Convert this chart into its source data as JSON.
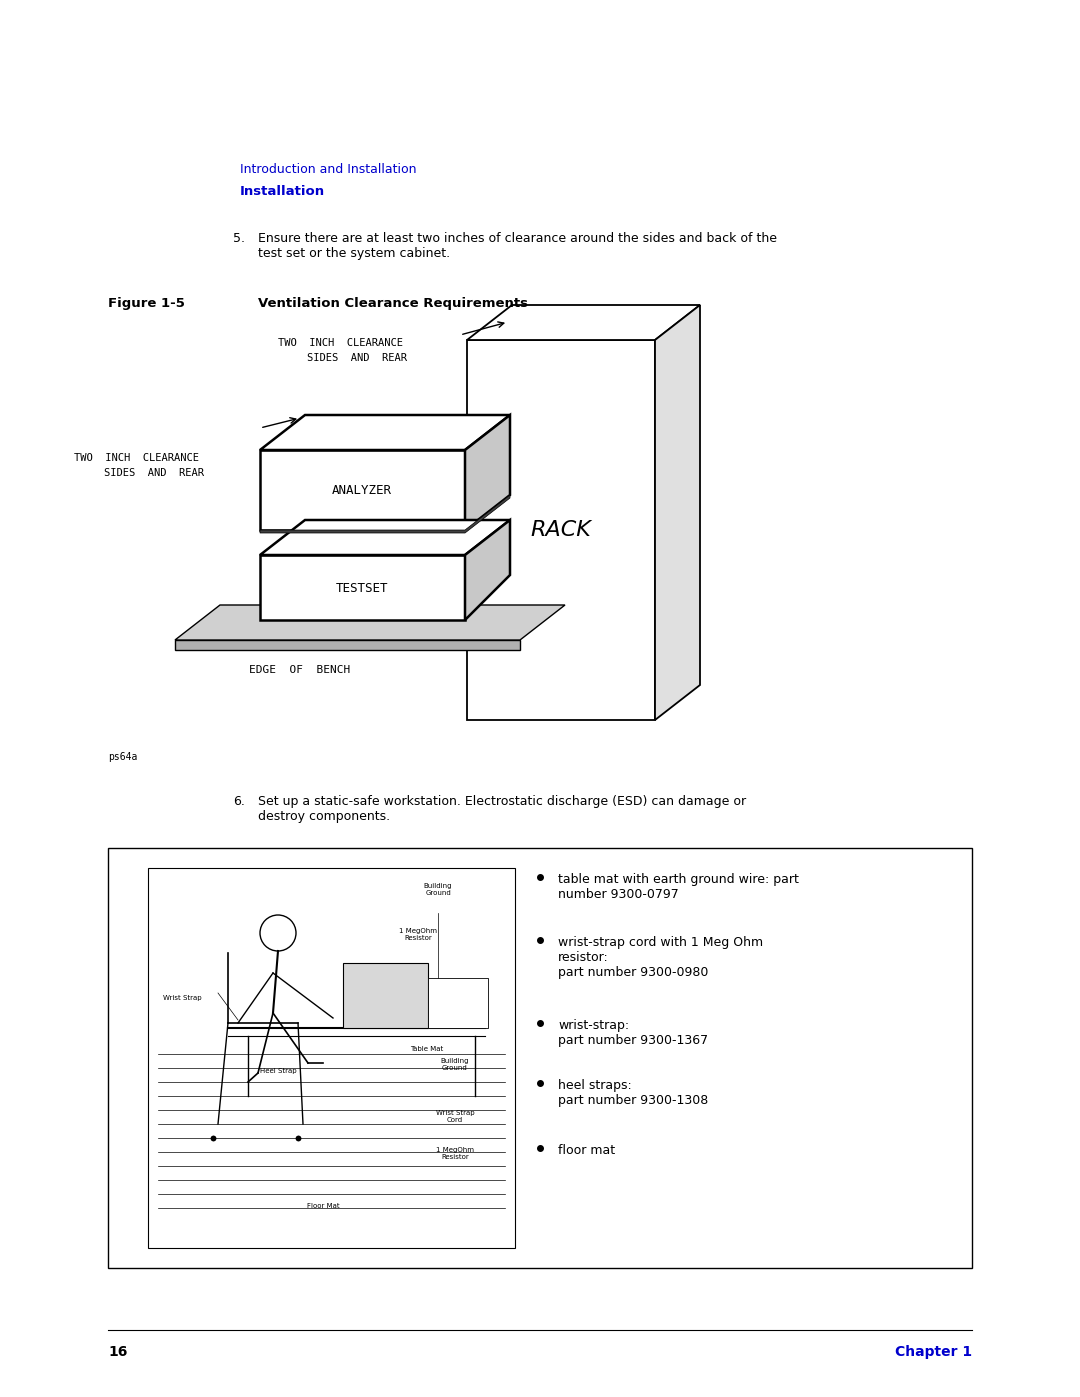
{
  "bg_color": "#ffffff",
  "page_width": 10.8,
  "page_height": 13.97,
  "header_text1": "Introduction and Installation",
  "header_text2": "Installation",
  "header_color1": "#0000cc",
  "header_color2": "#0000cc",
  "figure_label": "Figure 1-5",
  "figure_title": "Ventilation Clearance Requirements",
  "ps64a_label": "ps64a",
  "bullet_items": [
    "table mat with earth ground wire: part\nnumber 9300-0797",
    "wrist-strap cord with 1 Meg Ohm\nresistor:\npart number 9300-0980",
    "wrist-strap:\npart number 9300-1367",
    "heel straps:\npart number 9300-1308",
    "floor mat"
  ],
  "page_number": "16",
  "chapter_text": "Chapter 1",
  "chapter_color": "#0000cc"
}
